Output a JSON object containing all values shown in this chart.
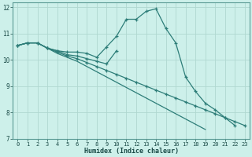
{
  "xlabel": "Humidex (Indice chaleur)",
  "background_color": "#cdf0ea",
  "grid_color": "#b0d8d0",
  "line_color": "#2d7d78",
  "xlim": [
    -0.5,
    23.5
  ],
  "ylim": [
    7,
    12.2
  ],
  "yticks": [
    7,
    8,
    9,
    10,
    11,
    12
  ],
  "xticks": [
    0,
    1,
    2,
    3,
    4,
    5,
    6,
    7,
    8,
    9,
    10,
    11,
    12,
    13,
    14,
    15,
    16,
    17,
    18,
    19,
    20,
    21,
    22,
    23
  ],
  "series": [
    {
      "x": [
        0,
        1,
        2,
        3,
        4,
        5,
        6,
        7,
        8,
        9,
        10,
        11,
        12,
        13,
        14,
        15,
        16,
        17,
        18,
        19,
        20,
        21,
        22
      ],
      "y": [
        10.55,
        10.65,
        10.65,
        10.45,
        10.35,
        10.3,
        10.3,
        10.25,
        10.1,
        10.5,
        10.9,
        11.55,
        11.55,
        11.85,
        11.95,
        11.2,
        10.65,
        9.35,
        8.8,
        8.35,
        8.1,
        7.8,
        7.5
      ],
      "marker": true
    },
    {
      "x": [
        0,
        1,
        2,
        3,
        4,
        5,
        6,
        7,
        8,
        9,
        10,
        11,
        12,
        13,
        14,
        15,
        16,
        17,
        18,
        19,
        20,
        21,
        22,
        23
      ],
      "y": [
        10.55,
        10.65,
        10.65,
        10.45,
        10.3,
        10.15,
        10.05,
        9.9,
        9.75,
        9.6,
        9.45,
        9.3,
        9.15,
        9.0,
        8.85,
        8.7,
        8.55,
        8.4,
        8.25,
        8.1,
        7.95,
        7.8,
        7.65,
        7.5
      ],
      "marker": true
    },
    {
      "x": [
        0,
        1,
        2,
        3,
        4,
        5,
        6,
        7,
        8,
        9,
        10,
        11,
        12,
        13,
        14,
        15,
        16,
        17,
        18,
        19
      ],
      "y": [
        10.55,
        10.65,
        10.65,
        10.45,
        10.25,
        10.1,
        9.95,
        9.75,
        9.55,
        9.35,
        9.15,
        8.95,
        8.75,
        8.55,
        8.35,
        8.15,
        7.95,
        7.75,
        7.55,
        7.35
      ],
      "marker": false
    },
    {
      "x": [
        0,
        1,
        2,
        3,
        4,
        5,
        6,
        7,
        8,
        9,
        10
      ],
      "y": [
        10.55,
        10.65,
        10.65,
        10.45,
        10.35,
        10.2,
        10.15,
        10.05,
        9.95,
        9.85,
        10.35
      ],
      "marker": true
    }
  ]
}
